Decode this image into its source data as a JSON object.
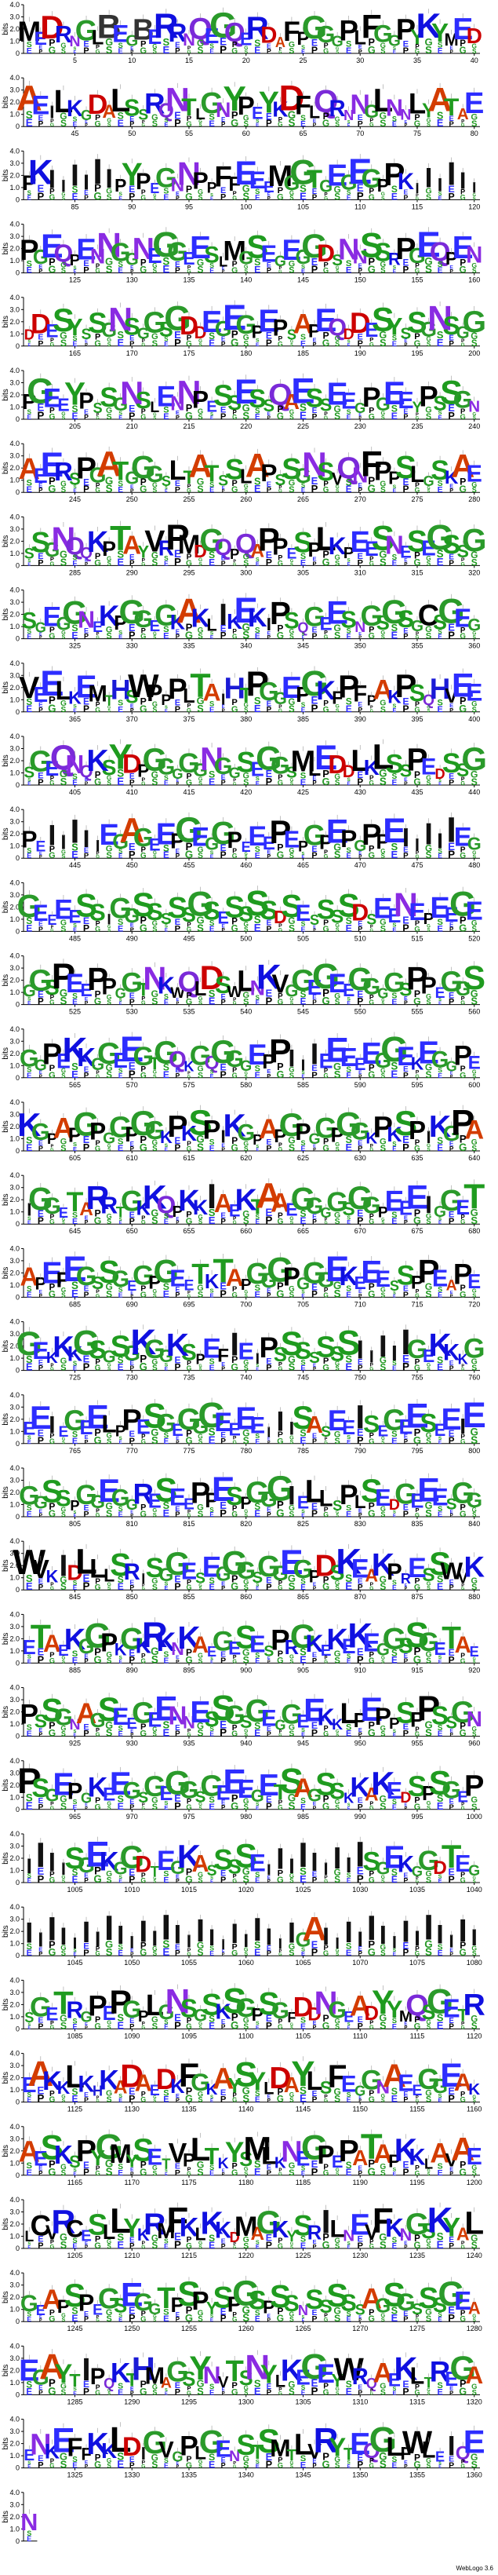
{
  "chart_data": {
    "type": "sequence-logo",
    "ylabel": "bits",
    "ylim": [
      0,
      4.0
    ],
    "yticks": [
      "0",
      "1.0",
      "2.0",
      "3.0",
      "4.0"
    ],
    "positions_per_row": 40,
    "total_positions": 1361,
    "rows": [
      {
        "start": 1,
        "seq": "MEDRNGLBEGBERRNQEGQERDAFPGGGPLFGGPYKY"
      },
      {
        "start": 41,
        "seq": "AEILKGDALSSRQNTLGNYPEYKDFLQRNNGLNNLYAT"
      },
      {
        "start": 81,
        "seq": "PKIIIIIIPYPEGNNPPFFEEEMGGTGEGEGP"
      },
      {
        "start": 121,
        "seq": "PGEQPENNGGNEGGEESLMGSEGEGGDSNNSSR"
      },
      {
        "start": 161,
        "seq": "DDESYSSGNSGGSGDDEGEGPEPSAPEQ"
      },
      {
        "start": 201,
        "seq": "PGEEYPSSGNSLENNPESSESSQAESSEEG"
      },
      {
        "start": 241,
        "seq": "AEERSPGATGGGSLTATSSLAPSSGNSVQNFPPSLGSK"
      },
      {
        "start": 281,
        "seq": "SSGNQQKPTAYVRPMDGQPQAPPESPLKPEESNESEG"
      },
      {
        "start": 321,
        "seq": "SGEGGNEKPGGEGKAKLIKEKIPSQGEESNGSGSGC"
      },
      {
        "start": 361,
        "seq": "VEELKEMTHSWPPPLTAIHTPGGEPGKFPFPAKPSQH"
      },
      {
        "start": 401,
        "seq": "SGEQNQKSYDPGGGGGNGGSEGGSMLEDDLKLSSPEDS"
      },
      {
        "start": 441,
        "seq": "PEIIIIIEGAGEEPGEGGPEEEPEPGPEPGP"
      },
      {
        "start": 481,
        "seq": "GEEEESSIGGSSSSSGSESSSSDSESSSSDSEENEPEE"
      },
      {
        "start": 521,
        "seq": "GGSPEEPPGGTNKWQLDSWLNKVGGEGEEGGGGSPPE"
      },
      {
        "start": 561,
        "seq": "GGPEKKGGEEGTGQKGQGGGEPPIIIEEEEEGGEKE"
      },
      {
        "start": 601,
        "seq": "KGPAPGPGGPGGKPKSPI"
      },
      {
        "start": 641,
        "seq": "IGGETARRTGKKQPKKIAEKTAAEGGGGSGGPEEE"
      },
      {
        "start": 681,
        "seq": "APEPEGSSGEGPGEETKTAPGGGPGGGEKEEESSPPE"
      },
      {
        "start": 721,
        "seq": "GEKKKGSGSGKGGKSPEFIEIPSSSSSSSIIIII"
      },
      {
        "start": 761,
        "seq": "EEIEGEELPPESGEGGGEEEEIIISASEEISEGEES"
      },
      {
        "start": 801,
        "seq": "GGSSPGGEGGRESEEPPESPGGGIELLSPLSEDGEEES"
      },
      {
        "start": 841,
        "seq": "WVKIDLLLSRISGGESEGGGSGGEGPDSKEAKPRESS"
      },
      {
        "start": 881,
        "seq": "ETAEKGGPKGKRKNKAEGESESPRGKEKEKEGGSSG"
      },
      {
        "start": 921,
        "seq": "PSSGNAGSEEGEENNESSGSGEGGEEKKLPEPPSP"
      },
      {
        "start": 961,
        "seq": "PSGEPGKEEGSGEGGSGEEEGETSAGSSKKAKEDS"
      },
      {
        "start": 1001,
        "seq": "IIIISGEKGGDTEGKASSSSEIIIII"
      },
      {
        "start": 1041,
        "seq": "IIIIIIIIIIIIIIIIIIIIIIIIGA"
      },
      {
        "start": 1081,
        "seq": "SGETRGPEPGPLGNSGSKSGPSGFDDNGEADYYMQ"
      },
      {
        "start": 1121,
        "seq": "EAKKLKHKADAEDKFGKAYSYLDAYLSFEGGNAEEGG"
      },
      {
        "start": 1161,
        "seq": "AESKSPYGMYSETVPLTKYSMLKNEGPEPATAPKKLAV"
      },
      {
        "start": 1201,
        "seq": "LCVRCESLLYKRMFKLKKDMAGKYSRILNEVFKNGSKYA"
      },
      {
        "start": 1241,
        "seq": "GEAPSPEGSEGGTPSPYSPGSPSSNSSSSSAGSGSSS"
      },
      {
        "start": 1281,
        "seq": "EGAYTIPQKTHMAGSYNVTSNYLKEGEYWRQAEKLTR"
      },
      {
        "start": 1321,
        "seq": "ENKEFFKKLDIGVGPLGENSTSMTLVRYTEQGLFWLEIQ"
      },
      {
        "start": 1361,
        "seq": "N"
      }
    ],
    "colors": {
      "A": "#d33c00",
      "C": "#000000",
      "D": "#cc0000",
      "E": "#2d2dff",
      "F": "#000000",
      "G": "#2a9a2a",
      "H": "#1b1bd6",
      "I": "#111111",
      "K": "#1010e0",
      "L": "#000000",
      "M": "#000000",
      "N": "#8a2be2",
      "P": "#000000",
      "Q": "#7a2ad8",
      "R": "#1010e0",
      "S": "#1f9b1f",
      "T": "#1f9b1f",
      "V": "#000000",
      "W": "#000000",
      "Y": "#1f9b1f"
    },
    "footer": "WebLogo 3.6"
  }
}
